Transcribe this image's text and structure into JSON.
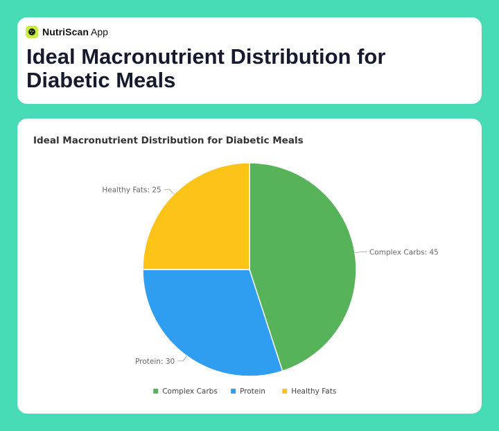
{
  "app": {
    "name": "NutriScan",
    "suffix": "App",
    "logo_icon": "cookie-icon",
    "logo_color": "#c7ee3b"
  },
  "page": {
    "title": "Ideal Macronutrient Distribution for Diabetic Meals",
    "background": "#47dbb5"
  },
  "chart_data": {
    "type": "pie",
    "title": "Ideal Macronutrient Distribution for Diabetic Meals",
    "categories": [
      "Complex Carbs",
      "Protein",
      "Healthy Fats"
    ],
    "values": [
      45,
      30,
      25
    ],
    "colors": [
      "#57b35a",
      "#2f9ef0",
      "#fcc419"
    ],
    "legend": "bottom"
  }
}
